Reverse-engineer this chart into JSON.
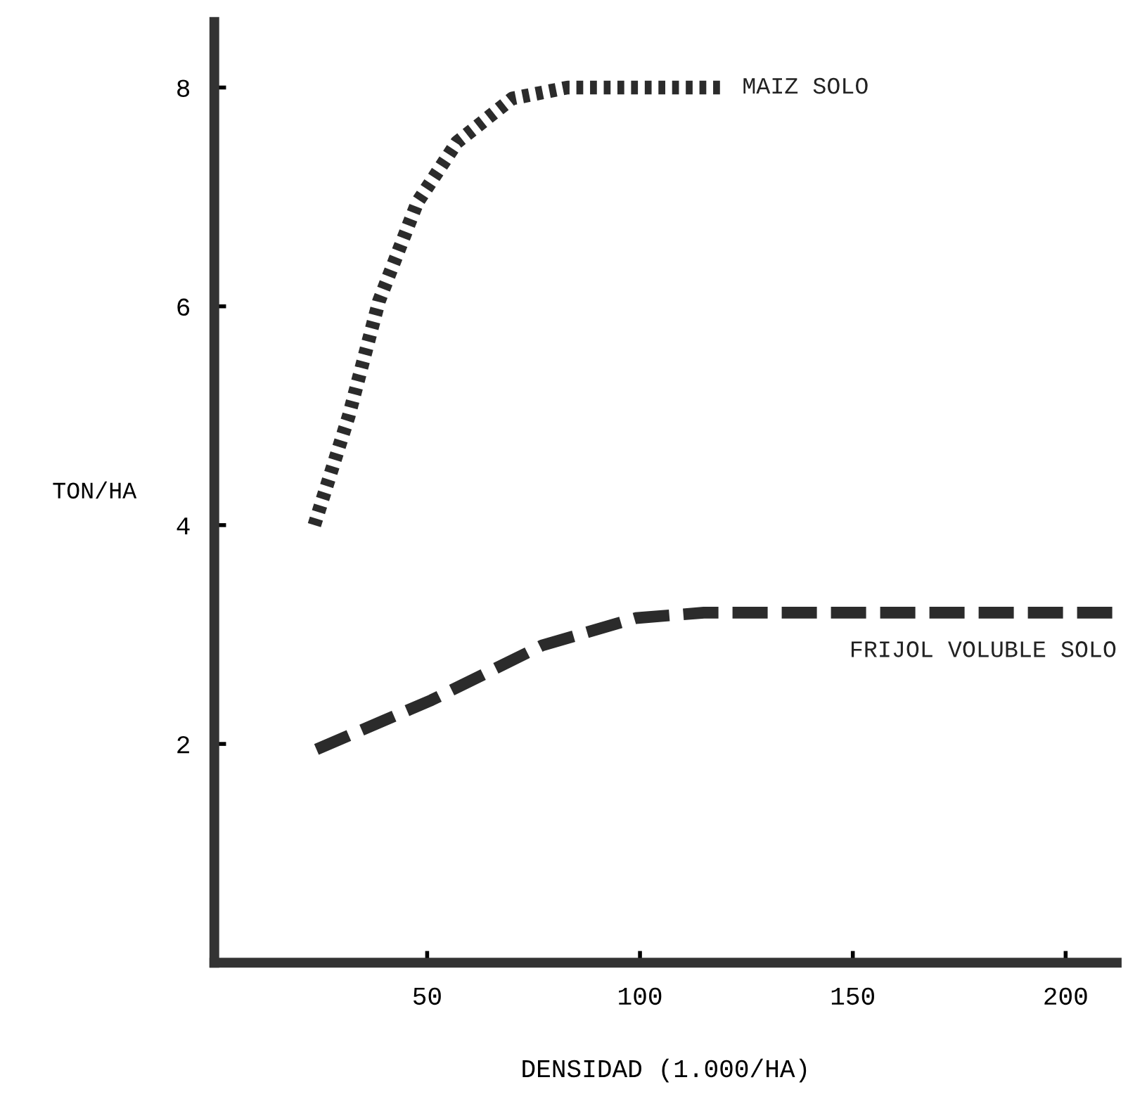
{
  "chart_data": {
    "type": "line",
    "xlabel": "DENSIDAD (1.000/HA)",
    "ylabel": "TON/HA",
    "xlim": [
      0,
      212
    ],
    "ylim": [
      0,
      8.6
    ],
    "xticks": [
      50,
      100,
      150,
      200
    ],
    "yticks": [
      2,
      4,
      6,
      8
    ],
    "grid": false,
    "legend": false,
    "series": [
      {
        "name": "MAIZ SOLO",
        "color": "#2b2b2b",
        "line_style": "dotted",
        "x": [
          23.5,
          31.6,
          38.7,
          47.7,
          57,
          70,
          83,
          119
        ],
        "values": [
          4.0,
          5.0,
          6.05,
          6.95,
          7.5,
          7.9,
          8.0,
          8.0
        ]
      },
      {
        "name": "FRIJOL VOLUBLE SOLO",
        "color": "#2b2b2b",
        "line_style": "dashed",
        "x": [
          24,
          51,
          77,
          99,
          115,
          212
        ],
        "values": [
          1.95,
          2.4,
          2.9,
          3.15,
          3.2,
          3.2
        ]
      }
    ]
  }
}
